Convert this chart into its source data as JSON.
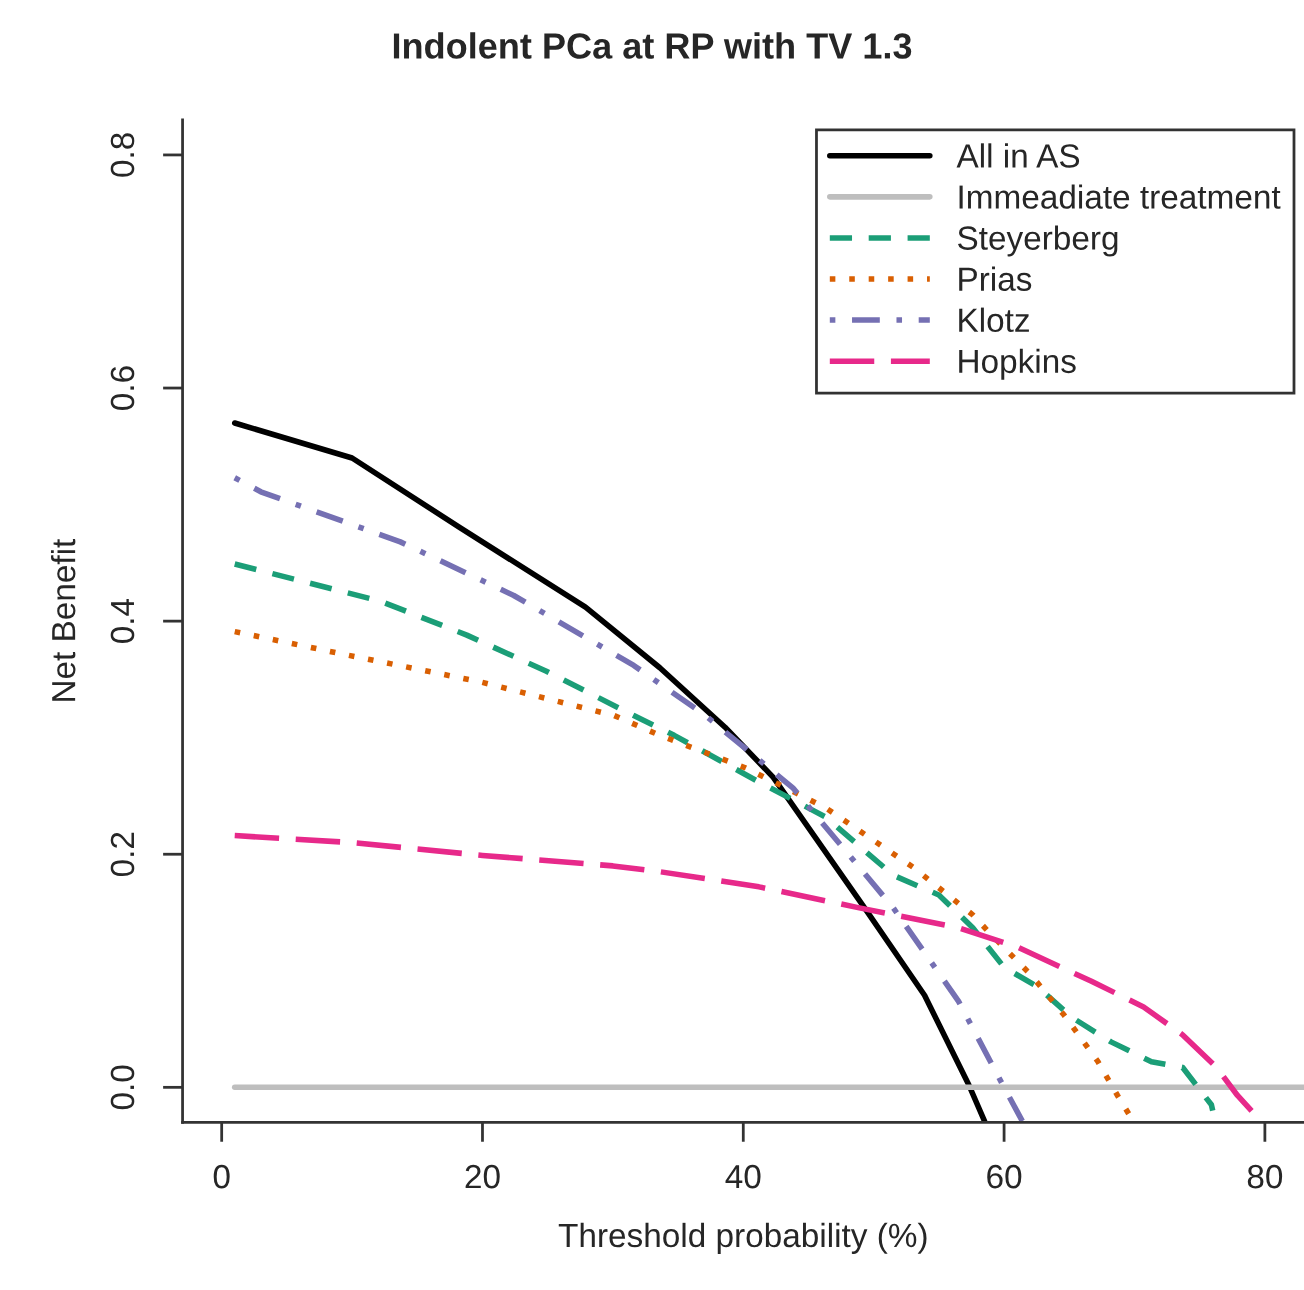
{
  "chart_data": {
    "type": "line",
    "title": "Indolent PCa at RP with TV 1.3",
    "xlabel": "Threshold probability (%)",
    "ylabel": "Net Benefit",
    "xlim": [
      -3,
      83
    ],
    "ylim": [
      -0.03,
      0.83
    ],
    "xticks": [
      0,
      20,
      40,
      60,
      80
    ],
    "yticks": [
      {
        "value": 0,
        "label": "0.0"
      },
      {
        "value": 0.2,
        "label": "0.2"
      },
      {
        "value": 0.4,
        "label": "0.4"
      },
      {
        "value": 0.6,
        "label": "0.6"
      },
      {
        "value": 0.8,
        "label": "0.8"
      }
    ],
    "grid": false,
    "legend": "top right",
    "series": [
      {
        "name": "All in AS",
        "color": "#000000",
        "line_style": "solid",
        "x": [
          1,
          10,
          18.3,
          27.9,
          33.6,
          38.6,
          42.3,
          49.3,
          53.9,
          57.3,
          58.5
        ],
        "values": [
          0.57,
          0.54,
          0.48,
          0.412,
          0.36,
          0.309,
          0.266,
          0.154,
          0.079,
          0.002,
          -0.029
        ]
      },
      {
        "name": "Immeadiate treatment",
        "color": "#bebebe",
        "line_style": "solid",
        "x": [
          1,
          83
        ],
        "values": [
          0,
          0
        ]
      },
      {
        "name": "Steyerberg",
        "color": "#1b9e77",
        "line_style": "dashed",
        "x": [
          1,
          12.2,
          18.8,
          24.9,
          31.6,
          34.7,
          41.2,
          46.3,
          51.5,
          55,
          57.6,
          60,
          62.6,
          65.2,
          68.2,
          71.3,
          73.7,
          75.9,
          76
        ],
        "values": [
          0.449,
          0.417,
          0.388,
          0.357,
          0.319,
          0.302,
          0.262,
          0.232,
          0.182,
          0.165,
          0.137,
          0.103,
          0.086,
          0.06,
          0.039,
          0.022,
          0.017,
          -0.015,
          -0.02
        ]
      },
      {
        "name": "Prias",
        "color": "#d95f02",
        "line_style": "dotted",
        "x": [
          1,
          9.6,
          19.8,
          30.1,
          33.6,
          40.2,
          46.3,
          53,
          57.6,
          59.1,
          62.1,
          64.6,
          67.2,
          68.7,
          69.9
        ],
        "values": [
          0.391,
          0.371,
          0.348,
          0.319,
          0.302,
          0.274,
          0.24,
          0.189,
          0.148,
          0.13,
          0.096,
          0.062,
          0.022,
          -0.007,
          -0.029
        ]
      },
      {
        "name": "Klotz",
        "color": "#7570b3",
        "line_style": "dashdot",
        "x": [
          1,
          3,
          13.7,
          22.4,
          31.6,
          37.1,
          43.8,
          51.5,
          56.5,
          60,
          61.4
        ],
        "values": [
          0.523,
          0.511,
          0.468,
          0.422,
          0.362,
          0.319,
          0.257,
          0.154,
          0.074,
          0.0,
          -0.029
        ]
      },
      {
        "name": "Hopkins",
        "color": "#e7298a",
        "line_style": "longdash",
        "x": [
          1,
          10,
          20,
          30,
          33.6,
          41.2,
          48.9,
          56.5,
          61.1,
          66.7,
          70.7,
          73.7,
          76.3,
          77.9,
          79.7
        ],
        "values": [
          0.216,
          0.21,
          0.199,
          0.19,
          0.185,
          0.172,
          0.154,
          0.137,
          0.12,
          0.091,
          0.069,
          0.045,
          0.017,
          -0.007,
          -0.029
        ]
      }
    ]
  }
}
